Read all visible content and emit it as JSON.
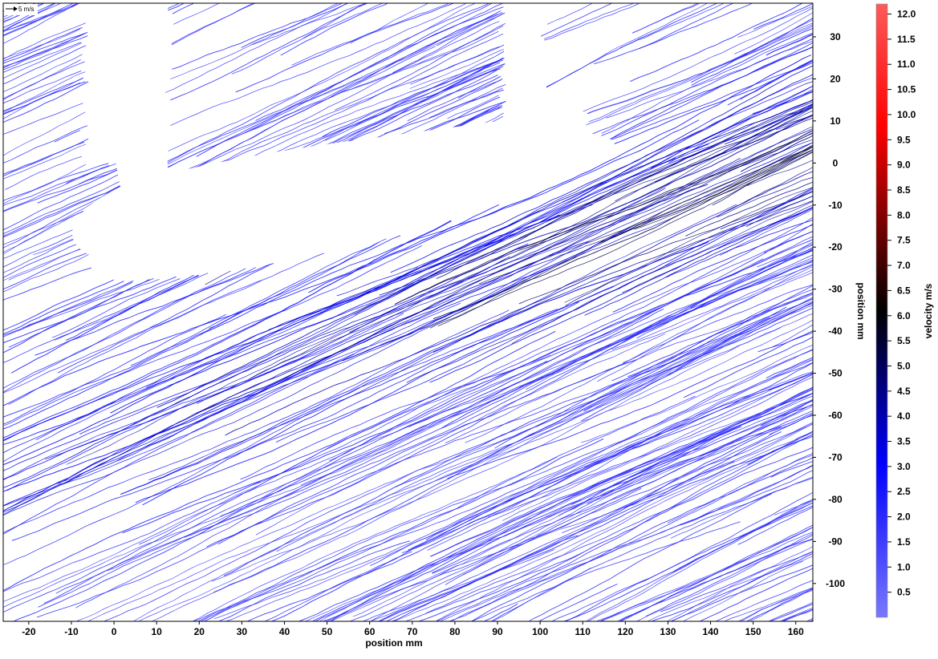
{
  "chart_data": {
    "type": "streamline",
    "xlabel": "position mm",
    "ylabel": "position mm",
    "colorbar_label": "velocity m/s",
    "scale_vector_label": "5 m/s",
    "xlim": [
      -26,
      164
    ],
    "ylim": [
      -109,
      38
    ],
    "xticks": [
      -20,
      -10,
      0,
      10,
      20,
      30,
      40,
      50,
      60,
      70,
      80,
      90,
      100,
      110,
      120,
      130,
      140,
      150,
      160
    ],
    "yticks": [
      30,
      20,
      10,
      0,
      -10,
      -20,
      -30,
      -40,
      -50,
      -60,
      -70,
      -80,
      -90,
      -100
    ],
    "colorbar_range": [
      0,
      12.2
    ],
    "colorbar_ticks": [
      "12.0",
      "11.5",
      "11.0",
      "10.5",
      "10.0",
      "9.5",
      "9.0",
      "8.5",
      "8.0",
      "7.5",
      "7.0",
      "6.5",
      "6.0",
      "5.5",
      "5.0",
      "4.5",
      "4.0",
      "3.5",
      "3.0",
      "2.5",
      "2.0",
      "1.5",
      "1.0",
      "0.5"
    ],
    "colormap": [
      "#7878ff",
      "#0000ff",
      "#000000",
      "#ff0000",
      "#ff5a5a"
    ],
    "grid": false,
    "flow": {
      "mean_direction": "lower-left to upper-right",
      "typical_speed_ms": 2.0,
      "peak_speed_ms": 6.5,
      "high_speed_region": "suction side of the foil, downstream of the trailing edge"
    },
    "masked_regions": [
      "foil",
      "support strut (left)",
      "support strut (right)"
    ]
  }
}
